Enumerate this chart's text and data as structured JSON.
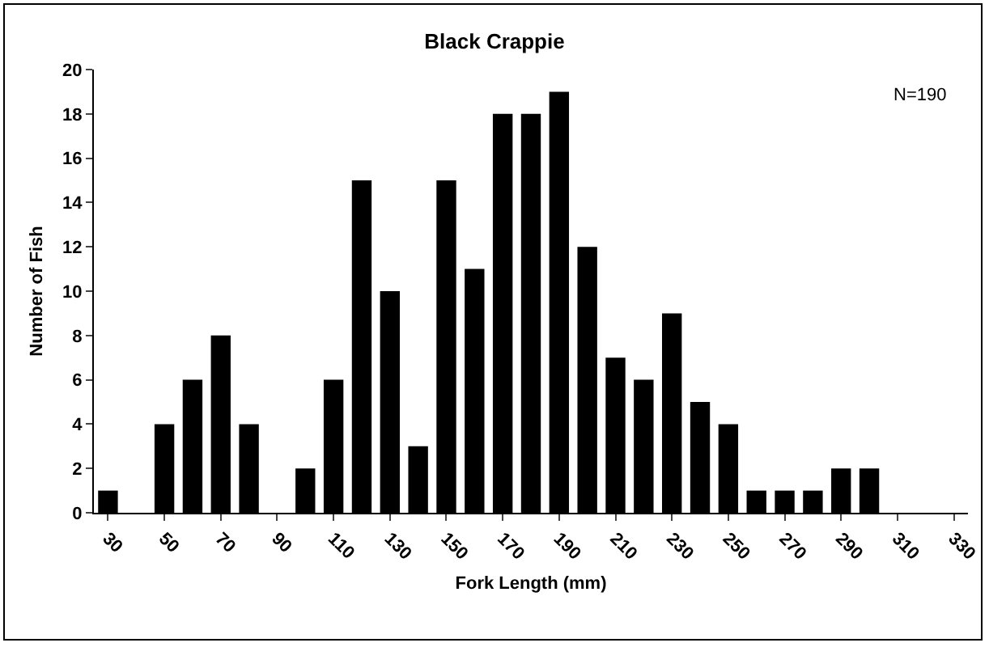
{
  "chart_data": {
    "type": "bar",
    "title": "Black Crappie",
    "xlabel": "Fork Length (mm)",
    "ylabel": "Number of Fish",
    "categories": [
      "30",
      null,
      "50",
      null,
      "70",
      null,
      "90",
      null,
      "110",
      null,
      "130",
      null,
      "150",
      null,
      "170",
      null,
      "190",
      null,
      "210",
      null,
      "230",
      null,
      "250",
      null,
      "270",
      null,
      "290",
      null,
      "310",
      null,
      "330"
    ],
    "values": [
      1,
      0,
      4,
      6,
      8,
      4,
      0,
      2,
      6,
      15,
      10,
      3,
      15,
      11,
      18,
      18,
      19,
      12,
      7,
      6,
      9,
      5,
      4,
      1,
      1,
      1,
      2,
      2,
      0,
      0,
      0
    ],
    "color": "#000000",
    "ylim": [
      0,
      20
    ],
    "yticks": [
      0,
      2,
      4,
      6,
      8,
      10,
      12,
      14,
      16,
      18,
      20
    ],
    "grid": false,
    "annotations": [
      "N=190"
    ]
  }
}
